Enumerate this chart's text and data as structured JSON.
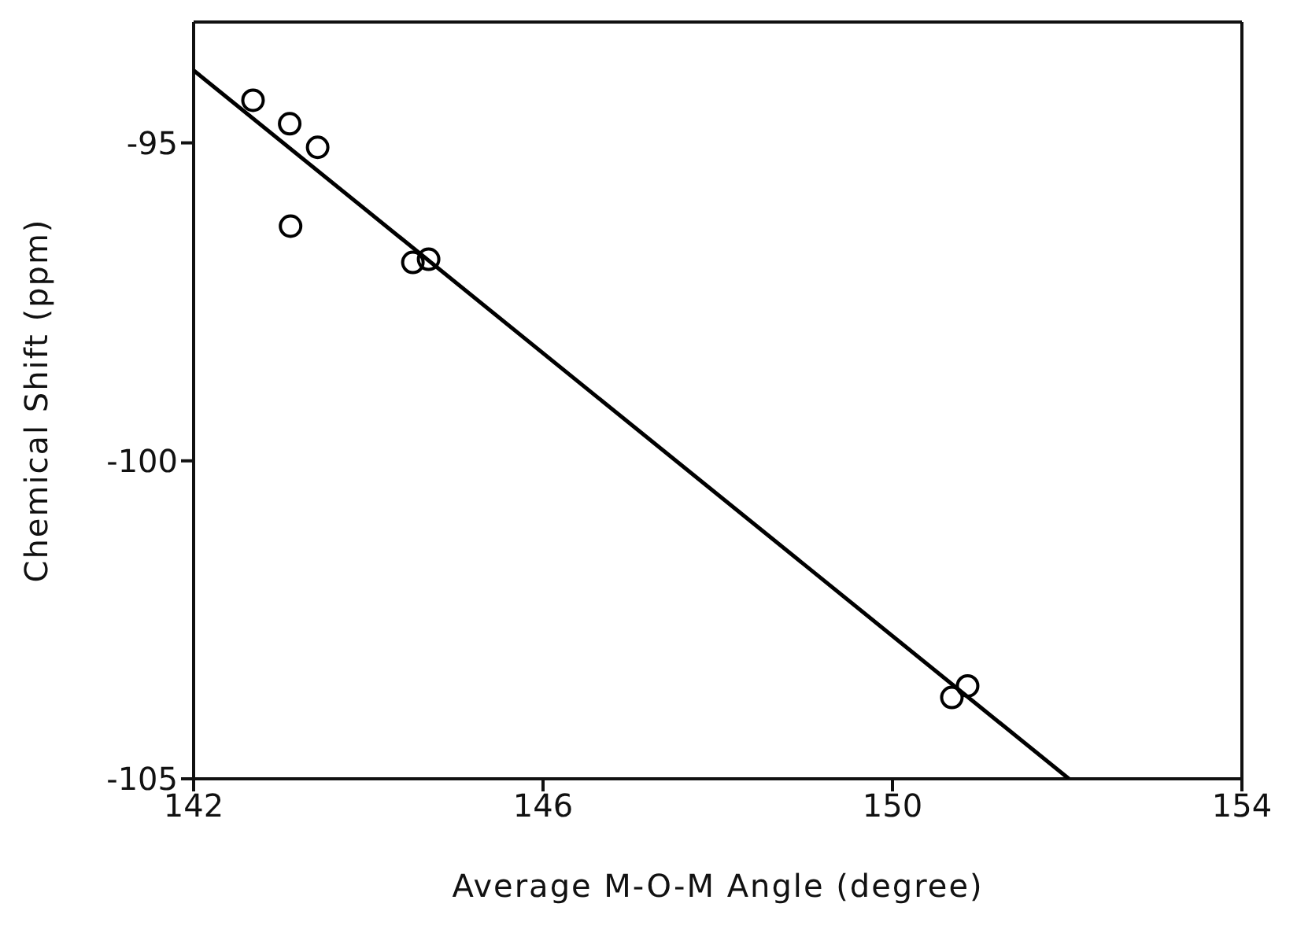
{
  "chart_data": {
    "type": "scatter",
    "xlabel": "Average M-O-M Angle (degree)",
    "ylabel": "Chemical Shift (ppm)",
    "xlim": [
      142,
      154
    ],
    "xticks": [
      142,
      146,
      150,
      154
    ],
    "ylim": [
      -105,
      -93.1
    ],
    "yticks": [
      -95,
      -100,
      -105
    ],
    "grid": false,
    "series": [
      {
        "marker": "circle",
        "color": "#000000",
        "x": [
          142.68,
          143.1,
          143.42,
          143.11,
          144.51,
          144.69,
          150.68,
          150.86
        ],
        "values": [
          -94.33,
          -94.7,
          -95.07,
          -96.31,
          -96.88,
          -96.83,
          -103.72,
          -103.54
        ]
      },
      {
        "type": "line",
        "line_style": "solid",
        "marker": "none",
        "color": "#000000",
        "x": [
          142,
          152.02
        ],
        "values": [
          -93.86,
          -105
        ]
      }
    ]
  }
}
